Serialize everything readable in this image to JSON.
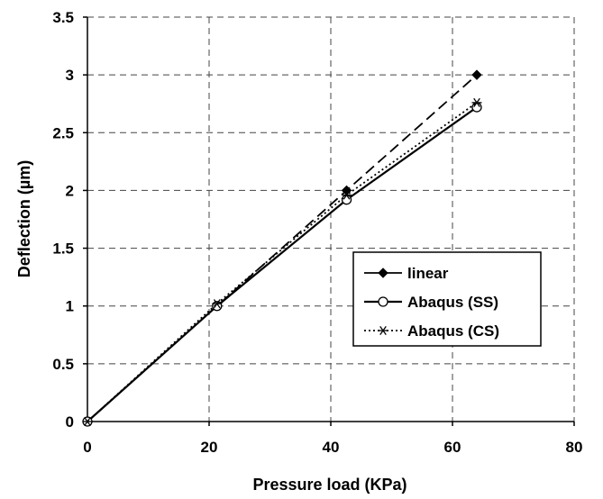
{
  "chart_data": {
    "type": "line",
    "xlabel": "Pressure load (KPa)",
    "ylabel": "Deflection (µm)",
    "xlim": [
      0,
      80
    ],
    "ylim": [
      0,
      3.5
    ],
    "xticks": [
      "0",
      "20",
      "40",
      "60",
      "80"
    ],
    "yticks": [
      "0",
      "0.5",
      "1",
      "1.5",
      "2",
      "2.5",
      "3",
      "3.5"
    ],
    "grid": true,
    "legend_position": "right",
    "series": [
      {
        "name": "linear",
        "marker": "diamond",
        "line": "dashed",
        "x": [
          0,
          21.3,
          42.6,
          64
        ],
        "y": [
          0,
          1.0,
          2.0,
          3.0
        ]
      },
      {
        "name": "Abaqus (SS)",
        "marker": "circle",
        "line": "solid",
        "x": [
          0,
          21.3,
          42.6,
          64
        ],
        "y": [
          0,
          1.0,
          1.92,
          2.72
        ]
      },
      {
        "name": "Abaqus (CS)",
        "marker": "asterisk",
        "line": "dotted",
        "x": [
          0,
          21.3,
          42.6,
          64
        ],
        "y": [
          0,
          1.02,
          1.96,
          2.76
        ]
      }
    ]
  }
}
